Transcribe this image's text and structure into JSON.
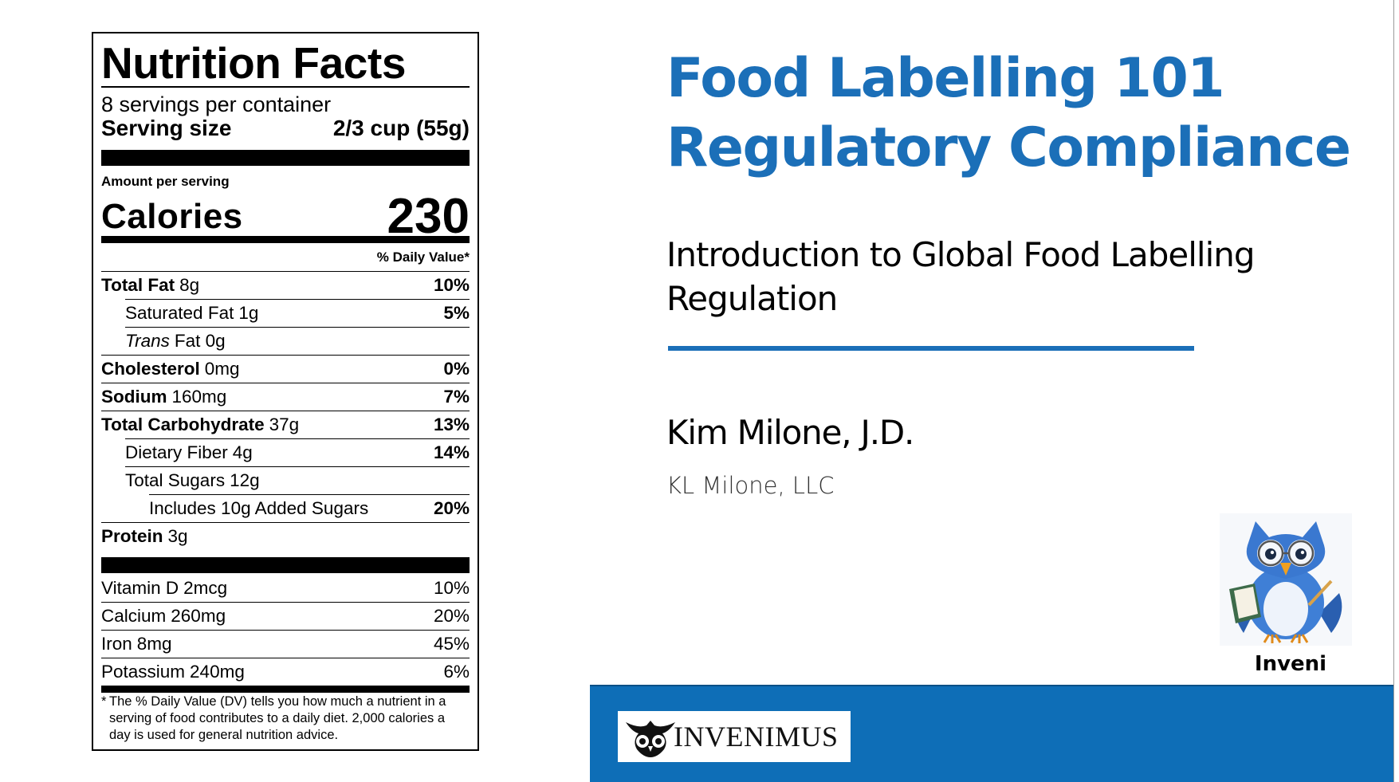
{
  "nutrition_label": {
    "title": "Nutrition Facts",
    "servings": "8 servings per container",
    "serving_size_label": "Serving size",
    "serving_size_value": "2/3 cup (55g)",
    "amount_per_serving": "Amount per serving",
    "calories_label": "Calories",
    "calories_value": "230",
    "dv_header": "% Daily Value*",
    "rows": [
      {
        "name": "Total Fat",
        "amount": "8g",
        "dv": "10%"
      },
      {
        "name": "Saturated Fat",
        "amount": "1g",
        "dv": "5%"
      },
      {
        "name": "Trans",
        "amount": "Fat 0g",
        "dv": ""
      },
      {
        "name": "Cholesterol",
        "amount": "0mg",
        "dv": "0%"
      },
      {
        "name": "Sodium",
        "amount": "160mg",
        "dv": "7%"
      },
      {
        "name": "Total Carbohydrate",
        "amount": "37g",
        "dv": "13%"
      },
      {
        "name": "Dietary Fiber",
        "amount": "4g",
        "dv": "14%"
      },
      {
        "name": "Total Sugars",
        "amount": "12g",
        "dv": ""
      },
      {
        "name": "Includes 10g Added Sugars",
        "amount": "",
        "dv": "20%"
      },
      {
        "name": "Protein",
        "amount": "3g",
        "dv": ""
      },
      {
        "name": "Vitamin D",
        "amount": "2mcg",
        "dv": "10%"
      },
      {
        "name": "Calcium",
        "amount": "260mg",
        "dv": "20%"
      },
      {
        "name": "Iron",
        "amount": "8mg",
        "dv": "45%"
      },
      {
        "name": "Potassium",
        "amount": "240mg",
        "dv": "6%"
      }
    ],
    "footnote_star": "*",
    "footnote": "The % Daily Value (DV) tells you how much a nutrient in a serving of food contributes to a daily diet. 2,000 calories a day is used for general nutrition advice."
  },
  "slide": {
    "title_line1": "Food Labelling 101",
    "title_line2": "Regulatory Compliance",
    "subtitle": "Introduction to Global Food Labelling Regulation",
    "author": "Kim Milone, J.D.",
    "organization": "KL Milone, LLC",
    "mascot_caption": "Inveni",
    "logo_text": "INVENIMUS",
    "colors": {
      "accent": "#1b6fb8",
      "footer_band": "#0e6eb7"
    }
  }
}
